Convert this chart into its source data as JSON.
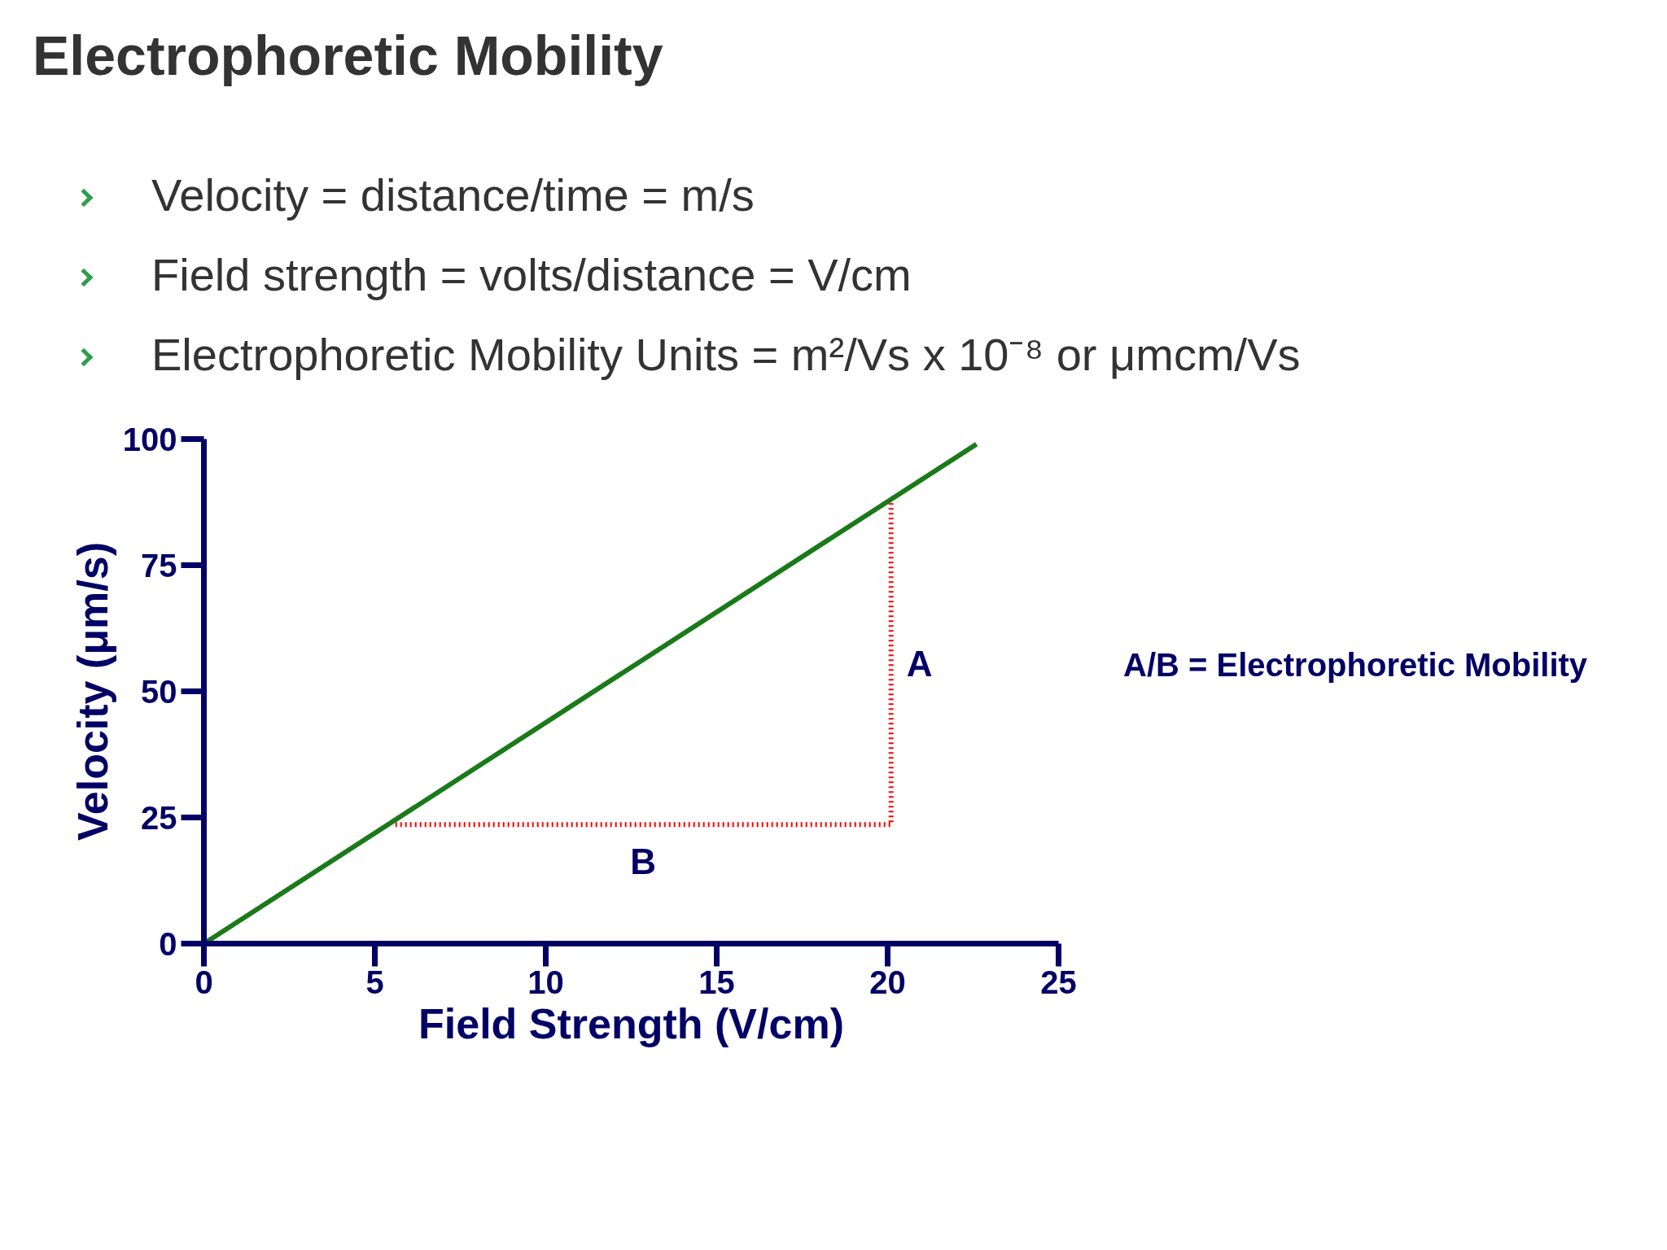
{
  "chart_data": {
    "type": "line",
    "title": "Electrophoretic Mobility",
    "annotations": [
      "Velocity = distance/time = m/s",
      "Field strength = volts/distance = V/cm",
      "Electrophoretic Mobility Units = m²/Vs x 10⁻⁸ or μmcm/Vs",
      "A",
      "B",
      "A/B = Electrophoretic Mobility"
    ],
    "xlabel": "Field Strength (V/cm)",
    "ylabel": "Velocity (μm/s)",
    "xlim": [
      0,
      25
    ],
    "ylim": [
      0,
      100
    ],
    "xticks": [
      0,
      5,
      10,
      15,
      20,
      25
    ],
    "yticks": [
      0,
      25,
      50,
      75,
      100
    ],
    "grid": false,
    "marker": "none",
    "series": [
      {
        "color": "#1a7a1a",
        "x": [
          0,
          22.6
        ],
        "values": [
          0,
          99
        ],
        "line_style": "solid"
      },
      {
        "color": "#ff0000",
        "x": [
          5.6,
          20.1,
          20.1
        ],
        "values": [
          23.6,
          23.6,
          87.5
        ],
        "line_style": "dotted"
      }
    ]
  }
}
